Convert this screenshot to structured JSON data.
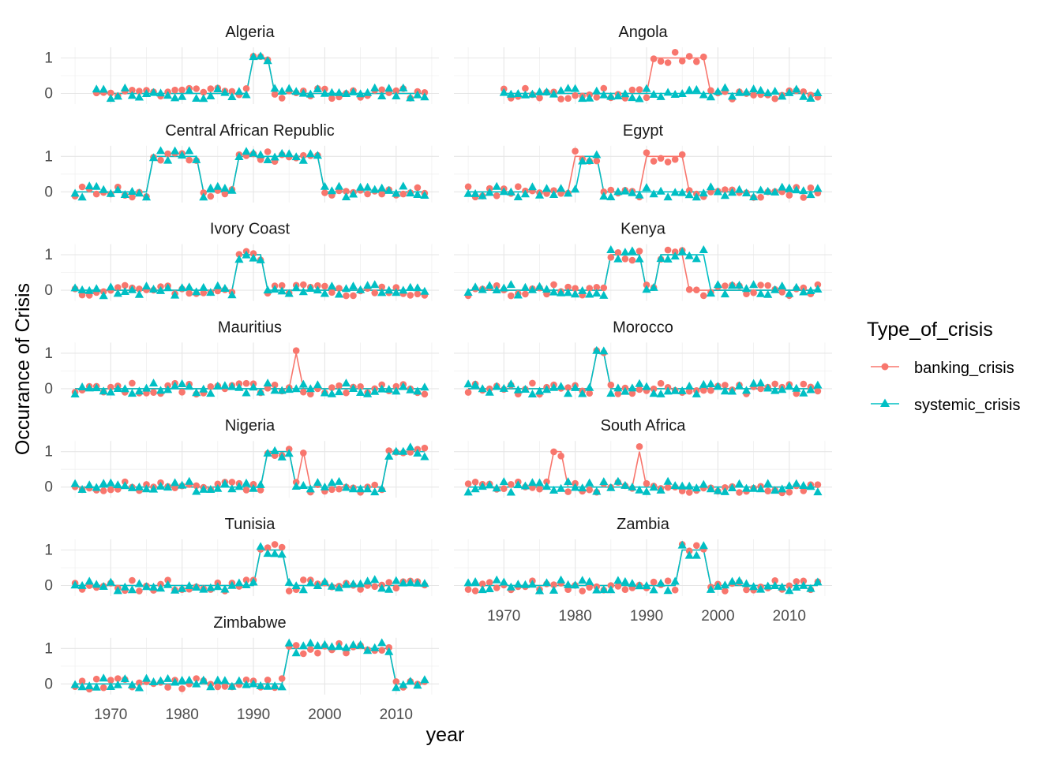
{
  "chart_data": {
    "type": "line",
    "xlabel": "year",
    "ylabel": "Occurance of Crisis",
    "legend_title": "Type_of_crisis",
    "legend_position": "right",
    "grid": true,
    "xlim": [
      1963,
      2016
    ],
    "ylim": [
      -0.3,
      1.3
    ],
    "x_ticks": [
      "1970",
      "1980",
      "1990",
      "2000",
      "2010"
    ],
    "y_ticks": [
      "0",
      "1"
    ],
    "series_names": [
      "banking_crisis",
      "systemic_crisis"
    ],
    "colors": {
      "banking_crisis": "#F8766D",
      "systemic_crisis": "#00BFC4"
    },
    "markers": {
      "banking_crisis": "circle",
      "systemic_crisis": "triangle"
    },
    "panels": [
      {
        "name": "Algeria",
        "years": [
          1968,
          2014
        ],
        "banking": [
          [
            1990,
            1992,
            1
          ]
        ],
        "systemic": [
          [
            1990,
            1992,
            1
          ]
        ]
      },
      {
        "name": "Angola",
        "years": [
          1970,
          2014
        ],
        "banking": [
          [
            1991,
            1998,
            1
          ]
        ],
        "systemic": []
      },
      {
        "name": "Central African Republic",
        "years": [
          1965,
          2014
        ],
        "banking": [
          [
            1976,
            1982,
            1
          ],
          [
            1988,
            1999,
            1
          ]
        ],
        "systemic": [
          [
            1976,
            1982,
            1
          ],
          [
            1988,
            1999,
            1
          ]
        ]
      },
      {
        "name": "Egypt",
        "years": [
          1965,
          2014
        ],
        "banking": [
          [
            1980,
            1983,
            1
          ],
          [
            1990,
            1995,
            1
          ]
        ],
        "systemic": [
          [
            1981,
            1983,
            1
          ]
        ]
      },
      {
        "name": "Ivory Coast",
        "years": [
          1965,
          2014
        ],
        "banking": [
          [
            1988,
            1991,
            1
          ]
        ],
        "systemic": [
          [
            1988,
            1991,
            1
          ]
        ]
      },
      {
        "name": "Kenya",
        "years": [
          1965,
          2014
        ],
        "banking": [
          [
            1985,
            1989,
            1
          ],
          [
            1992,
            1995,
            1
          ]
        ],
        "systemic": [
          [
            1985,
            1989,
            1
          ],
          [
            1992,
            1998,
            1
          ]
        ]
      },
      {
        "name": "Mauritius",
        "years": [
          1965,
          2014
        ],
        "banking": [
          [
            1996,
            1996,
            1
          ]
        ],
        "systemic": []
      },
      {
        "name": "Morocco",
        "years": [
          1965,
          2014
        ],
        "banking": [
          [
            1983,
            1984,
            1
          ]
        ],
        "systemic": [
          [
            1983,
            1984,
            1
          ]
        ]
      },
      {
        "name": "Nigeria",
        "years": [
          1965,
          2014
        ],
        "banking": [
          [
            1992,
            1995,
            1
          ],
          [
            1997,
            1997,
            1
          ],
          [
            2009,
            2014,
            1
          ]
        ],
        "systemic": [
          [
            1992,
            1995,
            1
          ],
          [
            2009,
            2014,
            1
          ]
        ]
      },
      {
        "name": "South Africa",
        "years": [
          1965,
          2014
        ],
        "banking": [
          [
            1977,
            1978,
            1
          ],
          [
            1989,
            1989,
            1
          ]
        ],
        "systemic": []
      },
      {
        "name": "Tunisia",
        "years": [
          1965,
          2014
        ],
        "banking": [
          [
            1991,
            1994,
            1
          ]
        ],
        "systemic": [
          [
            1991,
            1994,
            1
          ]
        ]
      },
      {
        "name": "Zambia",
        "years": [
          1965,
          2014
        ],
        "banking": [
          [
            1995,
            1998,
            1
          ]
        ],
        "systemic": [
          [
            1995,
            1998,
            1
          ]
        ]
      },
      {
        "name": "Zimbabwe",
        "years": [
          1965,
          2014
        ],
        "banking": [
          [
            1995,
            2009,
            1
          ]
        ],
        "systemic": [
          [
            1995,
            2009,
            1
          ]
        ]
      }
    ]
  }
}
